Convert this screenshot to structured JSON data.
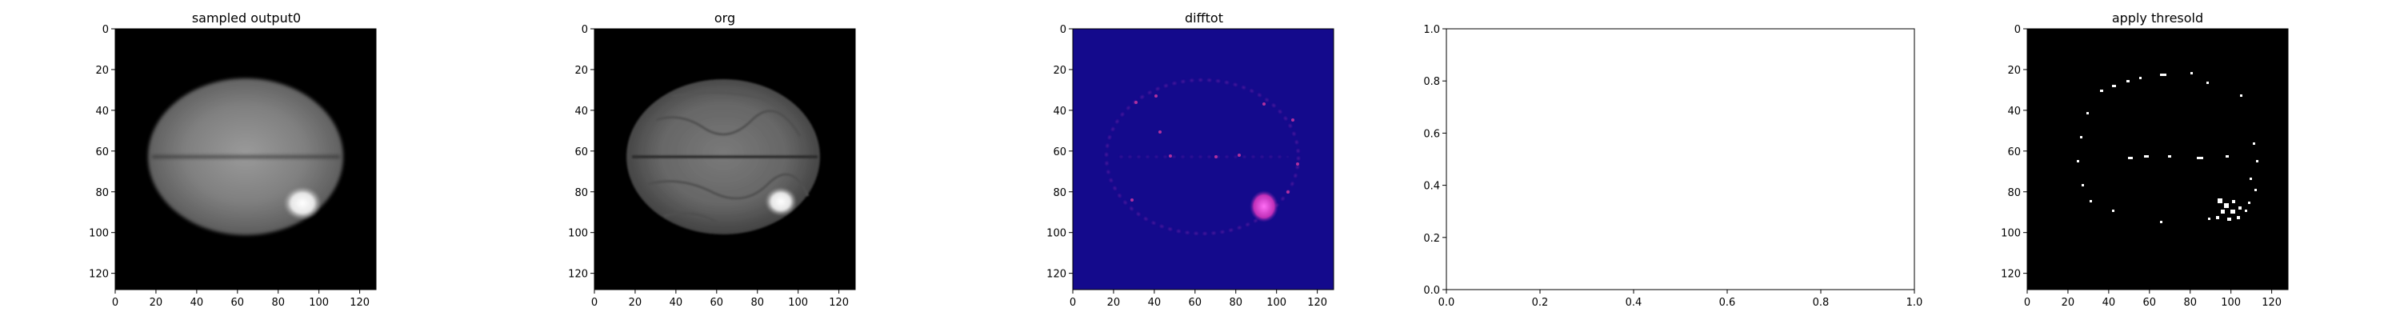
{
  "figure": {
    "colors": {
      "axis": "#000000",
      "background": "#ffffff",
      "image_bg": "#000000",
      "diff_bg": "#140a8c",
      "diff_hot": "#ff3cf0"
    },
    "panels": [
      {
        "id": "sampled",
        "title": "sampled output0",
        "kind": "image",
        "image_style": "brain-smooth",
        "x_ticks": [
          "0",
          "20",
          "40",
          "60",
          "80",
          "100",
          "120"
        ],
        "y_ticks": [
          "0",
          "20",
          "40",
          "60",
          "80",
          "100",
          "120"
        ],
        "x_range": [
          0,
          128
        ],
        "y_range": [
          0,
          128
        ]
      },
      {
        "id": "org",
        "title": "org",
        "kind": "image",
        "image_style": "brain-textured",
        "x_ticks": [
          "0",
          "20",
          "40",
          "60",
          "80",
          "100",
          "120"
        ],
        "y_ticks": [
          "0",
          "20",
          "40",
          "60",
          "80",
          "100",
          "120"
        ],
        "x_range": [
          0,
          128
        ],
        "y_range": [
          0,
          128
        ]
      },
      {
        "id": "difftot",
        "title": "difftot",
        "kind": "image",
        "image_style": "plasma-diff",
        "x_ticks": [
          "0",
          "20",
          "40",
          "60",
          "80",
          "100",
          "120"
        ],
        "y_ticks": [
          "0",
          "20",
          "40",
          "60",
          "80",
          "100",
          "120"
        ],
        "x_range": [
          0,
          128
        ],
        "y_range": [
          0,
          128
        ]
      },
      {
        "id": "empty",
        "title": "",
        "kind": "empty",
        "x_ticks": [
          "0.0",
          "0.2",
          "0.4",
          "0.6",
          "0.8",
          "1.0"
        ],
        "y_ticks": [
          "0.0",
          "0.2",
          "0.4",
          "0.6",
          "0.8",
          "1.0"
        ],
        "x_range": [
          0,
          1
        ],
        "y_range": [
          0,
          1
        ]
      },
      {
        "id": "threshold",
        "title": "apply thresold",
        "kind": "image",
        "image_style": "binary-mask",
        "x_ticks": [
          "0",
          "20",
          "40",
          "60",
          "80",
          "100",
          "120"
        ],
        "y_ticks": [
          "0",
          "20",
          "40",
          "60",
          "80",
          "100",
          "120"
        ],
        "x_range": [
          0,
          128
        ],
        "y_range": [
          0,
          128
        ]
      }
    ]
  },
  "chart_data": [
    {
      "type": "heatmap",
      "title": "sampled output0",
      "xlabel": "",
      "ylabel": "",
      "xlim": [
        0,
        128
      ],
      "ylim": [
        128,
        0
      ],
      "x_ticks": [
        0,
        20,
        40,
        60,
        80,
        100,
        120
      ],
      "y_ticks": [
        0,
        20,
        40,
        60,
        80,
        100,
        120
      ],
      "colormap": "gray",
      "lesion_center": [
        92,
        86
      ]
    },
    {
      "type": "heatmap",
      "title": "org",
      "xlabel": "",
      "ylabel": "",
      "xlim": [
        0,
        128
      ],
      "ylim": [
        128,
        0
      ],
      "x_ticks": [
        0,
        20,
        40,
        60,
        80,
        100,
        120
      ],
      "y_ticks": [
        0,
        20,
        40,
        60,
        80,
        100,
        120
      ],
      "colormap": "gray",
      "lesion_center": [
        92,
        86
      ]
    },
    {
      "type": "heatmap",
      "title": "difftot",
      "xlabel": "",
      "ylabel": "",
      "xlim": [
        0,
        128
      ],
      "ylim": [
        128,
        0
      ],
      "x_ticks": [
        0,
        20,
        40,
        60,
        80,
        100,
        120
      ],
      "y_ticks": [
        0,
        20,
        40,
        60,
        80,
        100,
        120
      ],
      "colormap": "plasma",
      "hotspot_center": [
        92,
        88
      ]
    },
    {
      "type": "line",
      "title": "",
      "xlabel": "",
      "ylabel": "",
      "xlim": [
        0.0,
        1.0
      ],
      "ylim": [
        0.0,
        1.0
      ],
      "x_ticks": [
        0.0,
        0.2,
        0.4,
        0.6,
        0.8,
        1.0
      ],
      "y_ticks": [
        0.0,
        0.2,
        0.4,
        0.6,
        0.8,
        1.0
      ],
      "series": []
    },
    {
      "type": "heatmap",
      "title": "apply thresold",
      "xlabel": "",
      "ylabel": "",
      "xlim": [
        0,
        128
      ],
      "ylim": [
        128,
        0
      ],
      "x_ticks": [
        0,
        20,
        40,
        60,
        80,
        100,
        120
      ],
      "y_ticks": [
        0,
        20,
        40,
        60,
        80,
        100,
        120
      ],
      "colormap": "binary",
      "hotspot_center": [
        92,
        88
      ]
    }
  ]
}
